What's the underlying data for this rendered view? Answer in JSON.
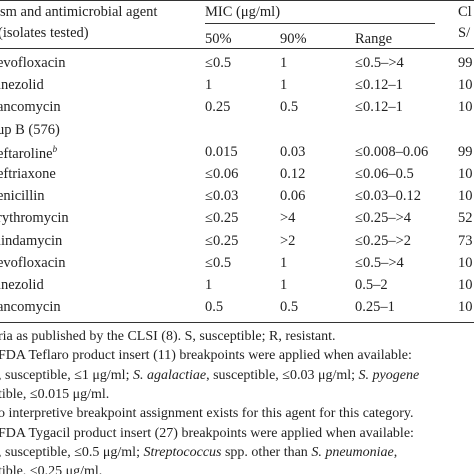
{
  "header": {
    "agent": [
      "sm and antimicrobial agent",
      "(isolates tested)"
    ],
    "mic": "MIC (μg/ml)",
    "columns": [
      "50%",
      "90%",
      "Range"
    ],
    "cl": [
      "Cl",
      "S/"
    ]
  },
  "table": {
    "rows": [
      [
        "evofloxacin",
        "≤0.5",
        "1",
        "≤0.5–>4",
        "99"
      ],
      [
        "inezolid",
        "1",
        "1",
        "≤0.12–1",
        "10"
      ],
      [
        "ancomycin",
        "0.25",
        "0.5",
        "≤0.12–1",
        "10"
      ],
      [
        "up B (576)"
      ],
      [
        "eftaroline",
        "0.015",
        "0.03",
        "≤0.008–0.06",
        "99"
      ],
      [
        "eftriaxone",
        "≤0.06",
        "0.12",
        "≤0.06–0.5",
        "10"
      ],
      [
        "enicillin",
        "≤0.03",
        "0.06",
        "≤0.03–0.12",
        "10"
      ],
      [
        "rythromycin",
        "≤0.25",
        ">4",
        "≤0.25–>4",
        "52"
      ],
      [
        "lindamycin",
        "≤0.25",
        ">2",
        "≤0.25–>2",
        "73"
      ],
      [
        "evofloxacin",
        "≤0.5",
        "1",
        "≤0.5–>4",
        "10"
      ],
      [
        "inezolid",
        "1",
        "1",
        "0.5–2",
        "10"
      ],
      [
        "ancomycin",
        "0.5",
        "0.5",
        "0.25–1",
        "10"
      ]
    ],
    "superscripts": {
      "4": "b"
    }
  },
  "footnotes": [
    [
      "ria as published by the CLSI (8). S, susceptible; R, resistant."
    ],
    [
      "FDA Teflaro product insert (11) breakpoints were applied when available:"
    ],
    [
      ", susceptible, ≤1 μg/ml; ",
      {
        "text": "S. agalactiae",
        "italic": true
      },
      ", susceptible, ≤0.03 μg/ml; ",
      {
        "text": "S. pyogene",
        "italic": true
      }
    ],
    [
      "tible, ≤0.015 μg/ml."
    ],
    [
      "o interpretive breakpoint assignment exists for this agent for this category."
    ],
    [
      "FDA Tygacil product insert (27) breakpoints were applied when available:"
    ],
    [
      ", susceptible, ≤0.5 μg/ml; ",
      {
        "text": "Streptococcus",
        "italic": true
      },
      " spp. other than ",
      {
        "text": "S. pneumoniae",
        "italic": true
      },
      ","
    ],
    [
      "tible, ≤0.25 μg/ml."
    ]
  ]
}
